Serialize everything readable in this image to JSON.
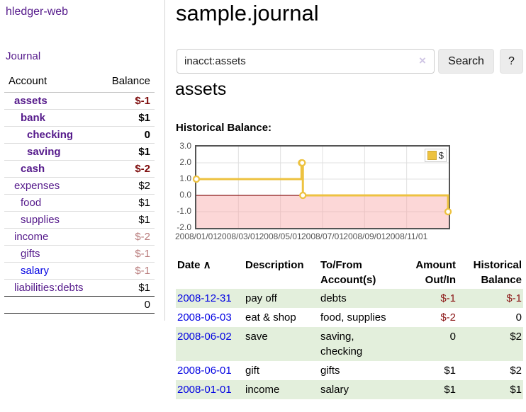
{
  "app": {
    "brand": "hledger-web",
    "nav_journal": "Journal"
  },
  "header": {
    "title": "sample.journal"
  },
  "search": {
    "value": "inacct:assets",
    "clear_icon": "×",
    "button_label": "Search",
    "help_label": "?"
  },
  "main": {
    "heading": "assets",
    "chart_label": "Historical Balance:"
  },
  "sidebar": {
    "header": {
      "account": "Account",
      "balance": "Balance"
    },
    "accounts": [
      {
        "name": "assets",
        "level": 1,
        "balance": "$-1",
        "in_query": true
      },
      {
        "name": "bank",
        "level": 2,
        "balance": "$1",
        "in_query": true
      },
      {
        "name": "checking",
        "level": 3,
        "balance": "0",
        "in_query": true
      },
      {
        "name": "saving",
        "level": 3,
        "balance": "$1",
        "in_query": true
      },
      {
        "name": "cash",
        "level": 2,
        "balance": "$-2",
        "in_query": true
      },
      {
        "name": "expenses",
        "level": 1,
        "balance": "$2",
        "in_query": false
      },
      {
        "name": "food",
        "level": 2,
        "balance": "$1",
        "in_query": false
      },
      {
        "name": "supplies",
        "level": 2,
        "balance": "$1",
        "in_query": false
      },
      {
        "name": "income",
        "level": 1,
        "balance": "$-2",
        "in_query": false
      },
      {
        "name": "gifts",
        "level": 2,
        "balance": "$-1",
        "in_query": false
      },
      {
        "name": "salary",
        "level": 2,
        "balance": "$-1",
        "in_query": false,
        "unvisited": true
      },
      {
        "name": "liabilities:debts",
        "level": 1,
        "balance": "$1",
        "in_query": false
      }
    ],
    "total": "0"
  },
  "chart_data": {
    "type": "line",
    "title": "Historical Balance",
    "step": true,
    "series": [
      {
        "name": "$",
        "color": "#edc240",
        "points": [
          [
            "2008-01-01",
            1
          ],
          [
            "2008-06-01",
            2
          ],
          [
            "2008-06-02",
            2
          ],
          [
            "2008-06-03",
            0
          ],
          [
            "2008-12-31",
            -1
          ]
        ]
      }
    ],
    "ylim": [
      -2,
      3
    ],
    "yticks": [
      "3.0",
      "2.0",
      "1.0",
      "0.0",
      "-1.0",
      "-2.0"
    ],
    "ytick_values": [
      3,
      2,
      1,
      0,
      -1,
      -2
    ],
    "xticks": [
      "2008/01/01",
      "2008/03/01",
      "2008/05/01",
      "2008/07/01",
      "2008/09/01",
      "2008/11/01"
    ],
    "x_start": "2008-01-01",
    "x_months": 12,
    "grid": true,
    "legend": {
      "label": "$",
      "position": "top-right"
    },
    "colors": {
      "negative_region": "rgba(247,160,160,0.42)",
      "zero_line": "#8b1a1a",
      "grid": "#e0e0e0",
      "marker_fill": "#ffffff"
    }
  },
  "table": {
    "headers": [
      {
        "label": "Date",
        "sort_icon": "∧",
        "align": "left"
      },
      {
        "label": "Description",
        "align": "left"
      },
      {
        "label": "To/From Account(s)",
        "align": "left"
      },
      {
        "label": "Amount Out/In",
        "align": "right"
      },
      {
        "label": "Historical Balance",
        "align": "right"
      }
    ],
    "rows": [
      {
        "date": "2008-12-31",
        "description": "pay off",
        "accounts": "debts",
        "amount": "$-1",
        "balance": "$-1"
      },
      {
        "date": "2008-06-03",
        "description": "eat & shop",
        "accounts": "food, supplies",
        "amount": "$-2",
        "balance": "0"
      },
      {
        "date": "2008-06-02",
        "description": "save",
        "accounts": "saving, checking",
        "amount": "0",
        "balance": "$2"
      },
      {
        "date": "2008-06-01",
        "description": "gift",
        "accounts": "gifts",
        "amount": "$1",
        "balance": "$2"
      },
      {
        "date": "2008-01-01",
        "description": "income",
        "accounts": "salary",
        "amount": "$1",
        "balance": "$1"
      }
    ]
  }
}
